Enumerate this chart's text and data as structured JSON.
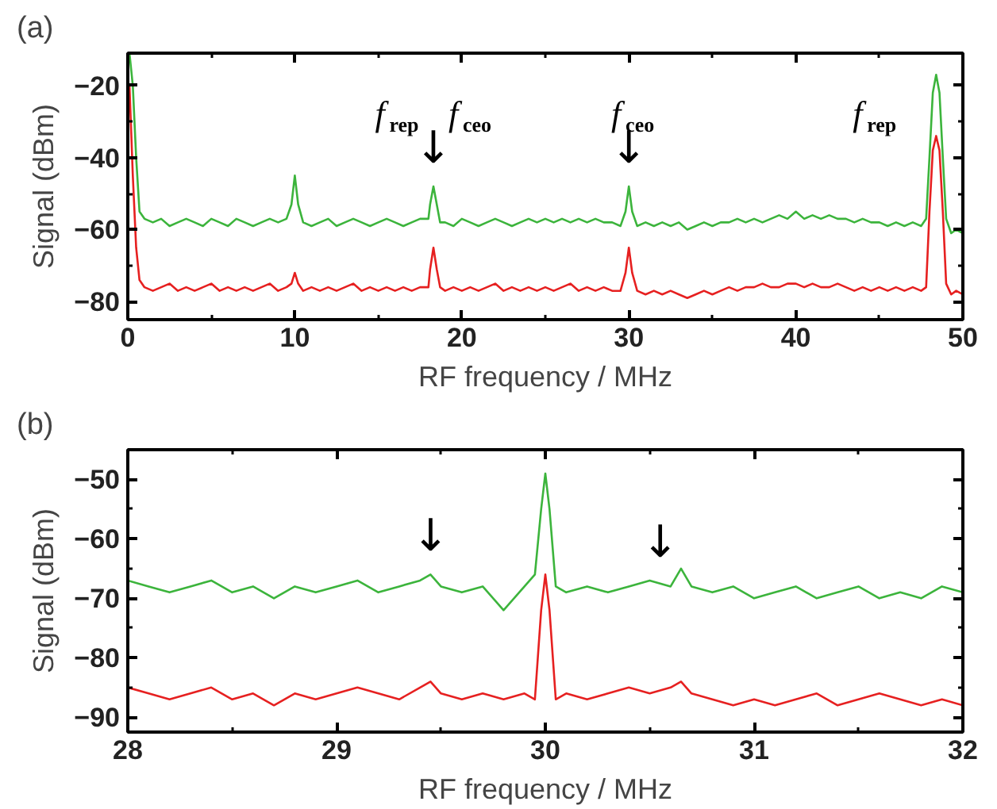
{
  "chart_data": [
    {
      "type": "line",
      "title": "(a)",
      "xlabel": "RF frequency / MHz",
      "ylabel": "Signal (dBm)",
      "xlim": [
        0,
        50
      ],
      "xticks": [
        0,
        10,
        20,
        30,
        40,
        50
      ],
      "ylim": [
        -85,
        -11
      ],
      "yticks": [
        -20,
        -40,
        -60,
        -80
      ],
      "grid": false,
      "marker": "none",
      "line_style": "solid",
      "annotations": [
        "f$_{rep}$",
        "f$_{ceo}$",
        {
          "text": "↓",
          "x": 18.3,
          "y": -48
        },
        "f$_{ceo}$",
        {
          "text": "↓",
          "x": 30,
          "y": -48
        },
        "f$_{rep}$"
      ],
      "series": [
        {
          "color": "#3cb43c",
          "x": [
            0.1,
            0.3,
            0.5,
            0.7,
            1,
            1.5,
            2,
            2.5,
            3,
            3.5,
            4,
            4.5,
            5,
            5.5,
            6,
            6.5,
            7,
            7.5,
            8,
            8.5,
            9,
            9.5,
            9.8,
            10,
            10.2,
            10.5,
            11,
            11.5,
            12,
            12.5,
            13,
            13.5,
            14,
            14.5,
            15,
            15.5,
            16,
            16.5,
            17,
            17.5,
            18,
            18.1,
            18.3,
            18.5,
            18.7,
            19,
            19.5,
            20,
            20.5,
            21,
            21.5,
            22,
            22.5,
            23,
            23.5,
            24,
            24.5,
            25,
            25.5,
            26,
            26.5,
            27,
            27.5,
            28,
            28.5,
            29,
            29.5,
            29.8,
            30,
            30.2,
            30.5,
            31,
            31.5,
            32,
            32.5,
            33,
            33.5,
            34,
            34.5,
            35,
            35.5,
            36,
            36.5,
            37,
            37.5,
            38,
            38.5,
            39,
            39.5,
            40,
            40.5,
            41,
            41.5,
            42,
            42.5,
            43,
            43.5,
            44,
            44.5,
            45,
            45.5,
            46,
            46.5,
            47,
            47.5,
            47.8,
            48,
            48.2,
            48.4,
            48.6,
            48.8,
            49,
            49.3,
            49.6,
            50
          ],
          "values": [
            -11,
            -20,
            -40,
            -55,
            -57,
            -58,
            -57,
            -59,
            -58,
            -57,
            -58,
            -59,
            -57,
            -58,
            -59,
            -57,
            -58,
            -59,
            -58,
            -57,
            -58,
            -57,
            -53,
            -45,
            -53,
            -58,
            -59,
            -58,
            -57,
            -59,
            -58,
            -57,
            -58,
            -59,
            -58,
            -57,
            -58,
            -59,
            -58,
            -57,
            -57,
            -53,
            -48,
            -53,
            -58,
            -58,
            -59,
            -57,
            -58,
            -59,
            -58,
            -57,
            -58,
            -59,
            -58,
            -57,
            -58,
            -57,
            -58,
            -57,
            -58,
            -57,
            -58,
            -57,
            -58,
            -58,
            -59,
            -55,
            -48,
            -55,
            -59,
            -58,
            -59,
            -58,
            -59,
            -58,
            -60,
            -59,
            -58,
            -59,
            -58,
            -58,
            -57,
            -58,
            -57,
            -58,
            -57,
            -56,
            -57,
            -55,
            -57,
            -56,
            -57,
            -56,
            -57,
            -57,
            -58,
            -57,
            -58,
            -58,
            -59,
            -58,
            -59,
            -58,
            -59,
            -57,
            -40,
            -22,
            -17,
            -22,
            -40,
            -57,
            -61,
            -60,
            -61
          ]
        },
        {
          "color": "#e62020",
          "x": [
            0.1,
            0.3,
            0.5,
            0.7,
            1,
            1.5,
            2,
            2.5,
            3,
            3.5,
            4,
            4.5,
            5,
            5.5,
            6,
            6.5,
            7,
            7.5,
            8,
            8.5,
            9,
            9.5,
            9.8,
            10,
            10.2,
            10.5,
            11,
            11.5,
            12,
            12.5,
            13,
            13.5,
            14,
            14.5,
            15,
            15.5,
            16,
            16.5,
            17,
            17.5,
            18,
            18.1,
            18.3,
            18.5,
            18.7,
            19,
            19.5,
            20,
            20.5,
            21,
            21.5,
            22,
            22.5,
            23,
            23.5,
            24,
            24.5,
            25,
            25.5,
            26,
            26.5,
            27,
            27.5,
            28,
            28.5,
            29,
            29.5,
            29.8,
            30,
            30.2,
            30.5,
            31,
            31.5,
            32,
            32.5,
            33,
            33.5,
            34,
            34.5,
            35,
            35.5,
            36,
            36.5,
            37,
            37.5,
            38,
            38.5,
            39,
            39.5,
            40,
            40.5,
            41,
            41.5,
            42,
            42.5,
            43,
            43.5,
            44,
            44.5,
            45,
            45.5,
            46,
            46.5,
            47,
            47.5,
            47.8,
            48,
            48.2,
            48.4,
            48.6,
            48.8,
            49,
            49.3,
            49.6,
            50
          ],
          "values": [
            -20,
            -45,
            -65,
            -74,
            -76,
            -77,
            -76,
            -75,
            -77,
            -76,
            -77,
            -76,
            -75,
            -77,
            -76,
            -77,
            -76,
            -77,
            -76,
            -75,
            -77,
            -76,
            -75,
            -72,
            -75,
            -77,
            -76,
            -77,
            -76,
            -77,
            -76,
            -75,
            -77,
            -76,
            -77,
            -76,
            -77,
            -76,
            -77,
            -76,
            -76,
            -71,
            -65,
            -71,
            -76,
            -77,
            -76,
            -77,
            -76,
            -77,
            -76,
            -75,
            -77,
            -76,
            -77,
            -76,
            -77,
            -76,
            -77,
            -76,
            -75,
            -77,
            -76,
            -77,
            -76,
            -77,
            -77,
            -72,
            -65,
            -72,
            -77,
            -78,
            -77,
            -78,
            -77,
            -78,
            -79,
            -78,
            -77,
            -78,
            -77,
            -76,
            -77,
            -76,
            -76,
            -75,
            -76,
            -76,
            -75,
            -75,
            -76,
            -75,
            -76,
            -76,
            -75,
            -76,
            -77,
            -76,
            -77,
            -76,
            -77,
            -76,
            -77,
            -76,
            -77,
            -76,
            -55,
            -38,
            -34,
            -38,
            -55,
            -75,
            -78,
            -77,
            -78
          ]
        }
      ]
    },
    {
      "type": "line",
      "title": "(b)",
      "xlabel": "RF frequency / MHz",
      "ylabel": "Signal (dBm)",
      "xlim": [
        28,
        32
      ],
      "xticks": [
        28,
        29,
        30,
        31,
        32
      ],
      "ylim": [
        -92.5,
        -45
      ],
      "yticks": [
        -50,
        -60,
        -70,
        -80,
        -90
      ],
      "grid": false,
      "marker": "none",
      "line_style": "solid",
      "annotations": [
        {
          "text": "↓",
          "x": 29.45,
          "y": -66
        },
        {
          "text": "↓",
          "x": 30.55,
          "y": -67
        }
      ],
      "series": [
        {
          "color": "#3cb43c",
          "x": [
            28,
            28.1,
            28.2,
            28.3,
            28.4,
            28.5,
            28.6,
            28.7,
            28.8,
            28.9,
            29,
            29.1,
            29.2,
            29.3,
            29.4,
            29.45,
            29.5,
            29.6,
            29.7,
            29.8,
            29.9,
            29.95,
            29.98,
            30,
            30.02,
            30.05,
            30.1,
            30.2,
            30.3,
            30.4,
            30.5,
            30.6,
            30.65,
            30.7,
            30.8,
            30.9,
            31,
            31.1,
            31.2,
            31.3,
            31.4,
            31.5,
            31.6,
            31.7,
            31.8,
            31.9,
            32
          ],
          "values": [
            -67,
            -68,
            -69,
            -68,
            -67,
            -69,
            -68,
            -70,
            -68,
            -69,
            -68,
            -67,
            -69,
            -68,
            -67,
            -66,
            -68,
            -69,
            -68,
            -72,
            -68,
            -66,
            -55,
            -49,
            -55,
            -68,
            -69,
            -68,
            -69,
            -68,
            -67,
            -68,
            -65,
            -68,
            -69,
            -68,
            -70,
            -69,
            -68,
            -70,
            -69,
            -68,
            -70,
            -69,
            -70,
            -68,
            -69
          ]
        },
        {
          "color": "#e62020",
          "x": [
            28,
            28.1,
            28.2,
            28.3,
            28.4,
            28.5,
            28.6,
            28.7,
            28.8,
            28.9,
            29,
            29.1,
            29.2,
            29.3,
            29.4,
            29.45,
            29.5,
            29.6,
            29.7,
            29.8,
            29.9,
            29.95,
            29.98,
            30,
            30.02,
            30.05,
            30.1,
            30.2,
            30.3,
            30.4,
            30.5,
            30.6,
            30.65,
            30.7,
            30.8,
            30.9,
            31,
            31.1,
            31.2,
            31.3,
            31.4,
            31.5,
            31.6,
            31.7,
            31.8,
            31.9,
            32
          ],
          "values": [
            -85,
            -86,
            -87,
            -86,
            -85,
            -87,
            -86,
            -88,
            -86,
            -87,
            -86,
            -85,
            -86,
            -87,
            -85,
            -84,
            -86,
            -87,
            -86,
            -87,
            -86,
            -87,
            -72,
            -66,
            -72,
            -87,
            -86,
            -87,
            -86,
            -85,
            -86,
            -85,
            -84,
            -86,
            -87,
            -88,
            -87,
            -88,
            -87,
            -86,
            -88,
            -87,
            -86,
            -87,
            -88,
            -87,
            -88
          ]
        }
      ]
    }
  ]
}
